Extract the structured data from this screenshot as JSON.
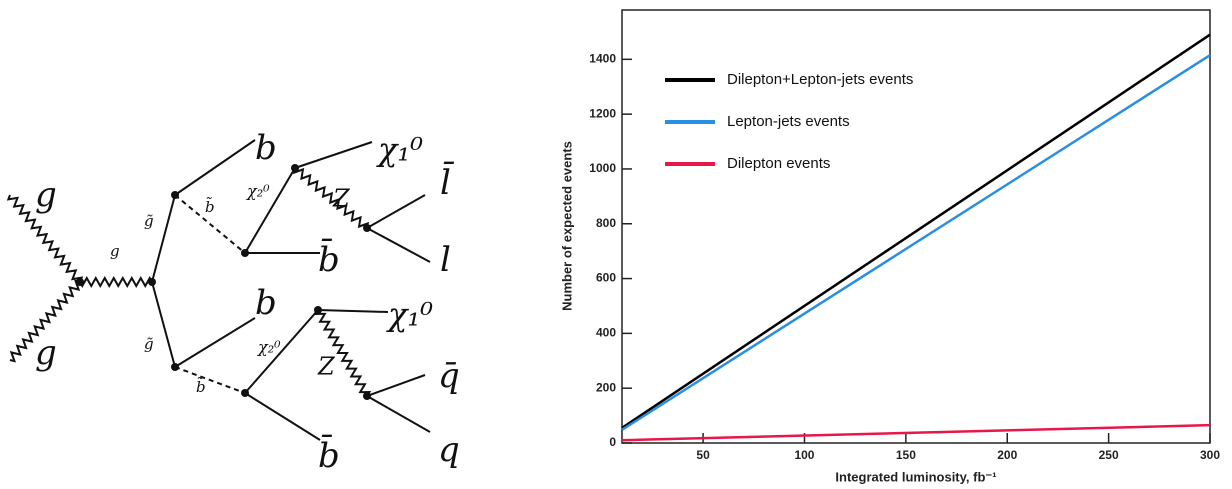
{
  "diagram": {
    "labels": [
      "g",
      "g",
      "g",
      "g̃",
      "g̃",
      "b̃",
      "b̃",
      "χ₂⁰",
      "χ₂⁰",
      "b",
      "b",
      "b̄",
      "b̄",
      "χ₁⁰",
      "χ₁⁰",
      "Z",
      "Z",
      "l̄",
      "l",
      "q̄",
      "q"
    ]
  },
  "chart_data": {
    "type": "line",
    "x_label": "Integrated luminosity, fb⁻¹",
    "y_label": "Number of expected events",
    "x": [
      10,
      300
    ],
    "series": [
      {
        "name": "Dilepton+Lepton-jets events",
        "color": "#000000",
        "values": [
          55,
          1490
        ]
      },
      {
        "name": "Lepton-jets events",
        "color": "#2a8fe0",
        "values": [
          48,
          1415
        ]
      },
      {
        "name": "Dilepton events",
        "color": "#e8174a",
        "values": [
          10,
          65
        ]
      }
    ],
    "xlim": [
      10,
      300
    ],
    "ylim": [
      0,
      1580
    ],
    "xticks": [
      50,
      100,
      150,
      200,
      250,
      300
    ],
    "yticks": [
      0,
      200,
      400,
      600,
      800,
      1000,
      1200,
      1400
    ],
    "grid": false,
    "legend": "upper left"
  }
}
